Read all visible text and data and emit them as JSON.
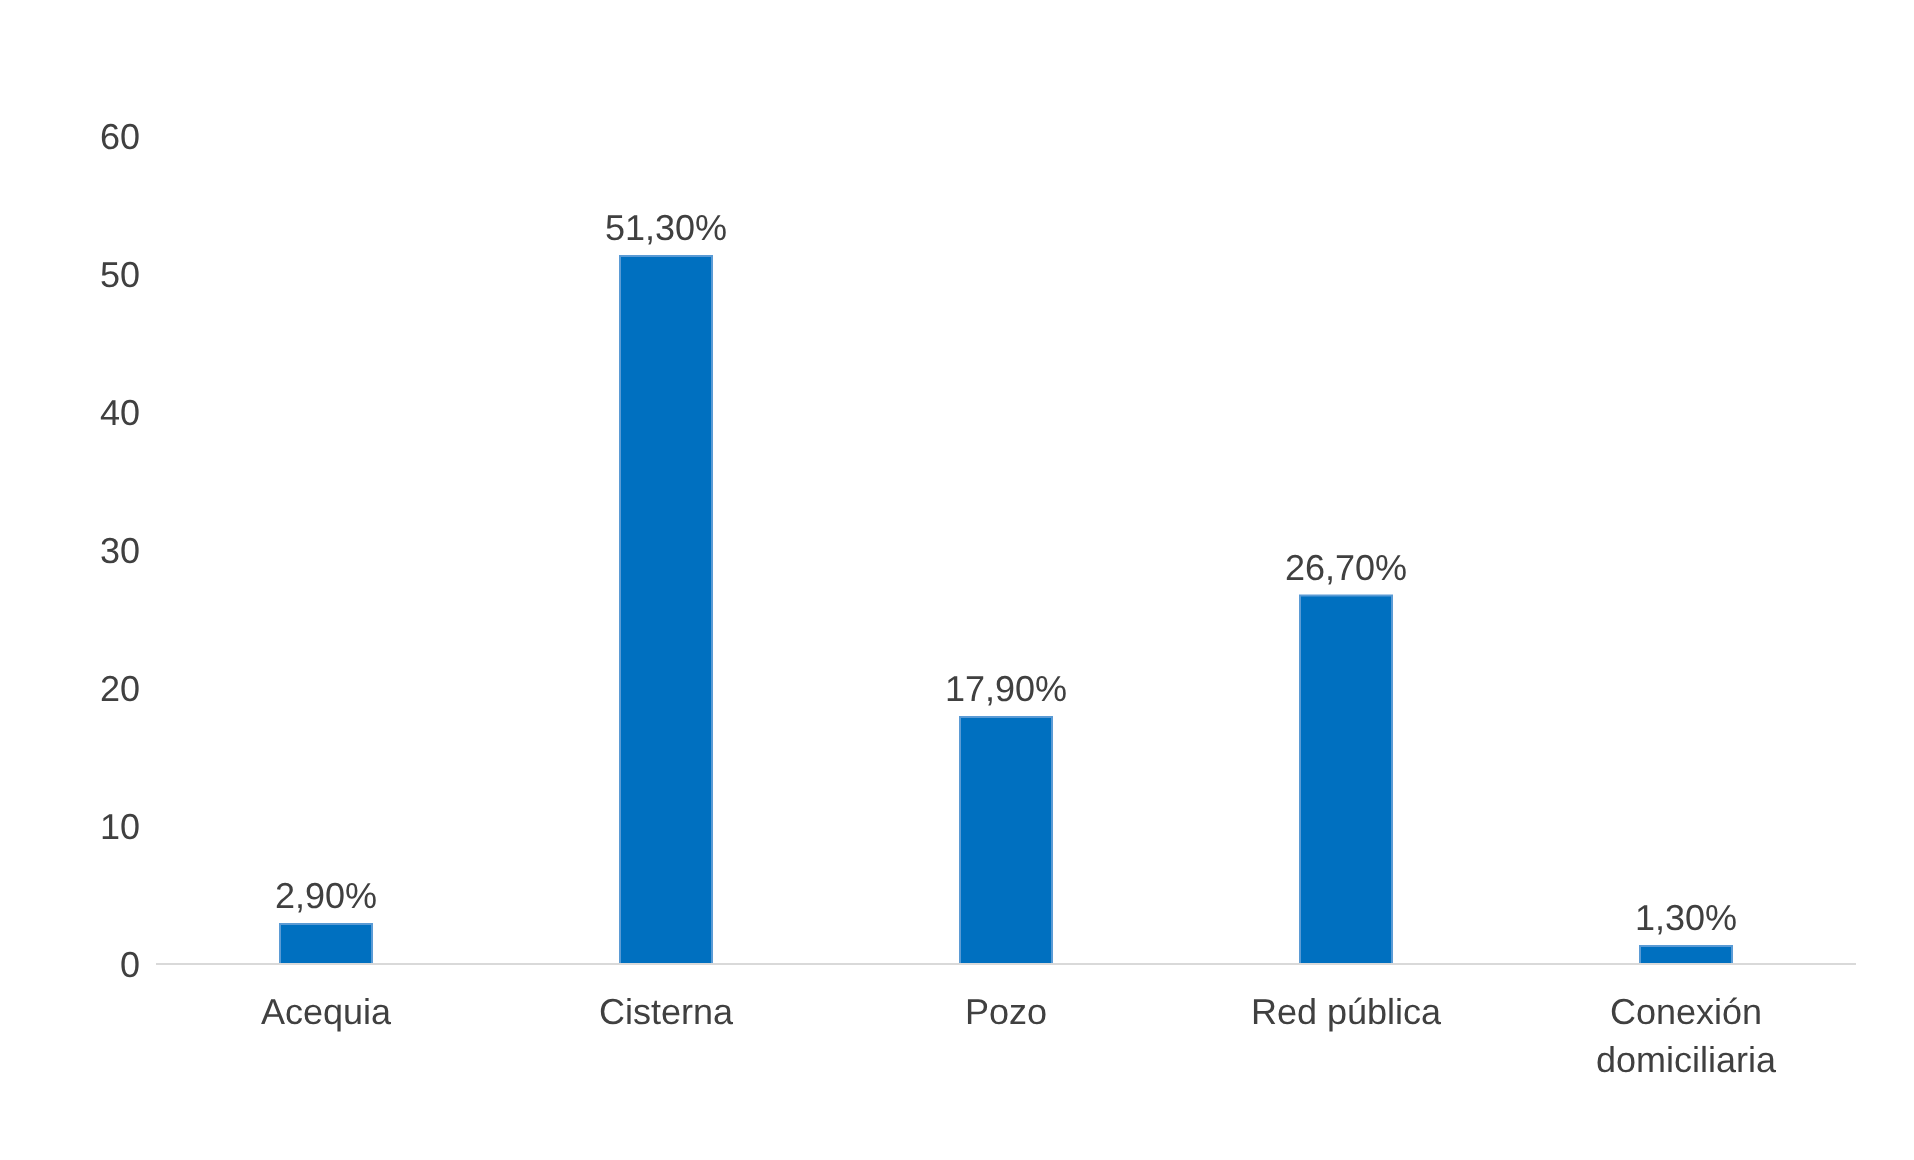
{
  "chart_data": {
    "type": "bar",
    "categories": [
      "Acequia",
      "Cisterna",
      "Pozo",
      "Red pública",
      "Conexión domiciliaria"
    ],
    "values": [
      2.9,
      51.3,
      17.9,
      26.7,
      1.3
    ],
    "color": "#0070c0",
    "value_labels": [
      "2,90%",
      "51,30%",
      "17,90%",
      "26,70%",
      "1,30%"
    ],
    "ylim": [
      0,
      60
    ],
    "yticks": [
      0,
      10,
      20,
      30,
      40,
      50,
      60
    ],
    "grid": false,
    "legend": false
  }
}
